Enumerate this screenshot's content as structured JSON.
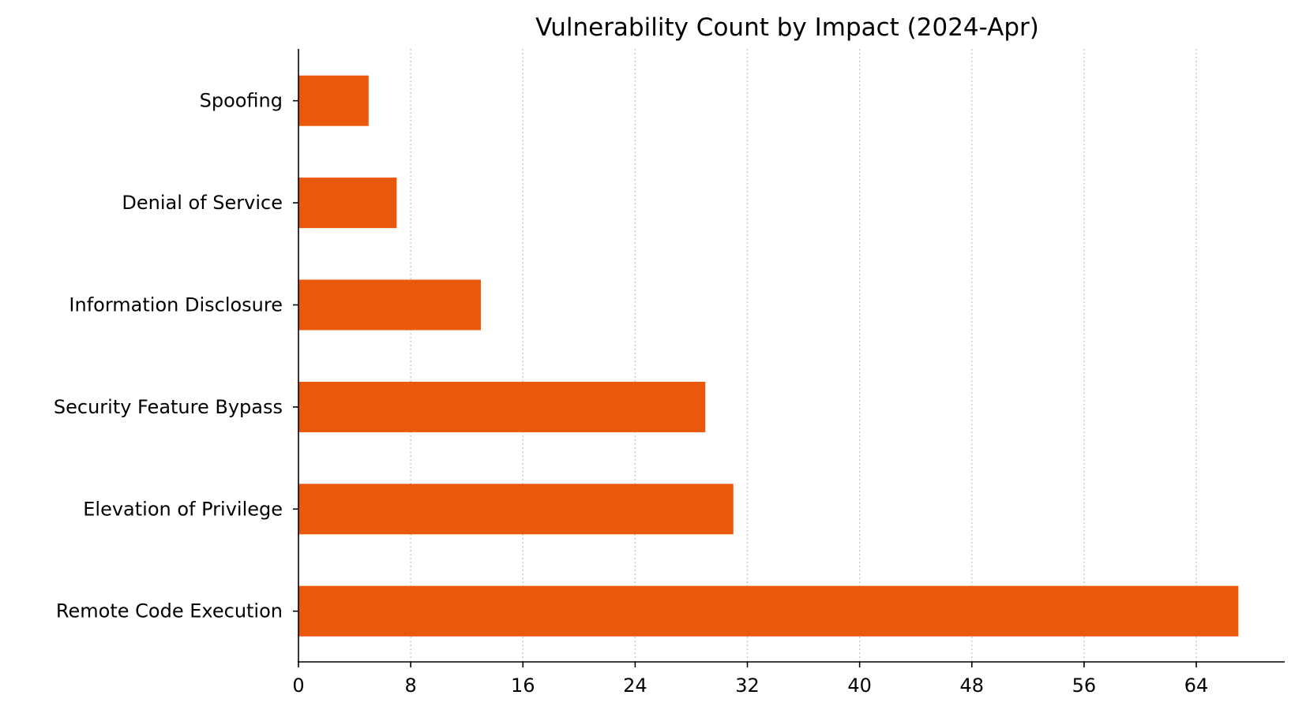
{
  "chart_data": {
    "type": "bar",
    "orientation": "horizontal",
    "title": "Vulnerability Count by Impact (2024-Apr)",
    "xlabel": "",
    "ylabel": "",
    "categories": [
      "Remote Code Execution",
      "Elevation of Privilege",
      "Security Feature Bypass",
      "Information Disclosure",
      "Denial of Service",
      "Spoofing"
    ],
    "values": [
      67,
      31,
      29,
      13,
      7,
      5
    ],
    "xlim": [
      0,
      70.3
    ],
    "xticks": [
      0,
      8,
      16,
      24,
      32,
      40,
      48,
      56,
      64
    ],
    "grid": "x-dotted",
    "bar_color": "#EA580C",
    "legend": "none"
  }
}
